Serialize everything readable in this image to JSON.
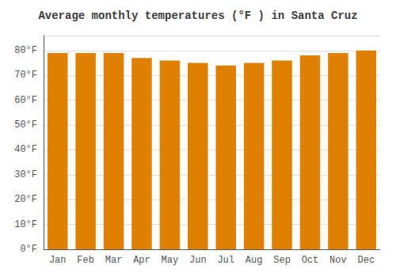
{
  "chart_data": {
    "type": "bar",
    "title": "Average monthly temperatures (°F ) in Santa Cruz",
    "categories": [
      "Jan",
      "Feb",
      "Mar",
      "Apr",
      "May",
      "Jun",
      "Jul",
      "Aug",
      "Sep",
      "Oct",
      "Nov",
      "Dec"
    ],
    "values": [
      79,
      79,
      79,
      77,
      76,
      75,
      74,
      75,
      76,
      78,
      79,
      80
    ],
    "color": "#E08000",
    "ylim": [
      0,
      86
    ],
    "yticks": [
      {
        "value": 0,
        "label": "0°F"
      },
      {
        "value": 10,
        "label": "10°F"
      },
      {
        "value": 20,
        "label": "20°F"
      },
      {
        "value": 30,
        "label": "30°F"
      },
      {
        "value": 40,
        "label": "40°F"
      },
      {
        "value": 50,
        "label": "50°F"
      },
      {
        "value": 60,
        "label": "60°F"
      },
      {
        "value": 70,
        "label": "70°F"
      },
      {
        "value": 80,
        "label": "80°F"
      }
    ],
    "grid": true
  }
}
